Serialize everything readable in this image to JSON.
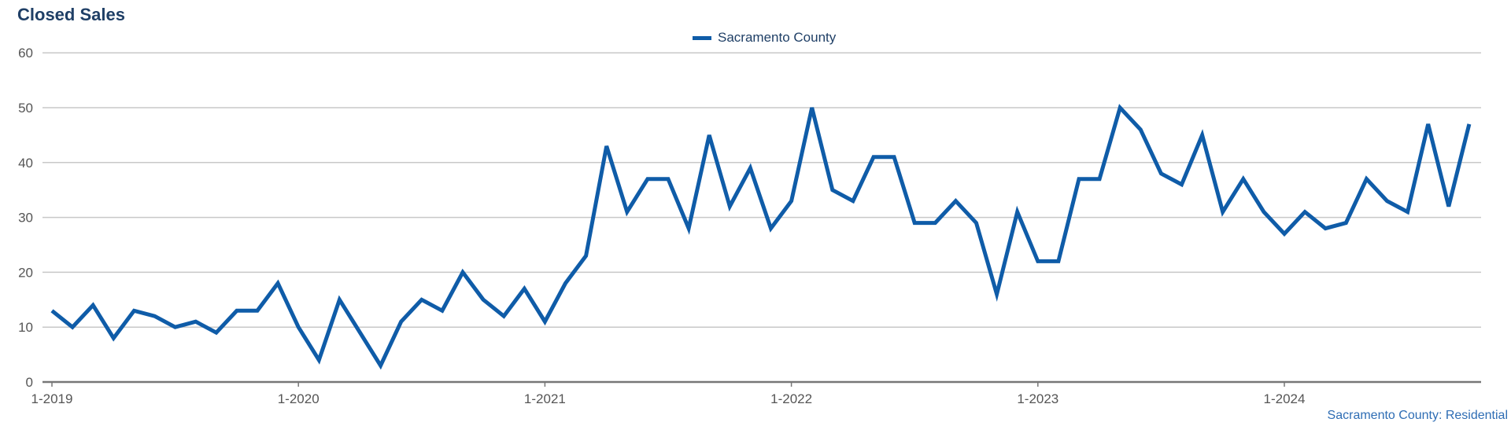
{
  "chart_data": {
    "type": "line",
    "title": "Closed Sales",
    "xlabel": "",
    "ylabel": "",
    "ylim": [
      0,
      60
    ],
    "yticks": [
      0,
      10,
      20,
      30,
      40,
      50,
      60
    ],
    "x_tick_labels": [
      "1-2019",
      "1-2020",
      "1-2021",
      "1-2022",
      "1-2023",
      "1-2024"
    ],
    "grid": true,
    "legend_position": "top-center",
    "series": [
      {
        "name": "Sacramento County",
        "color": "#0f5ca8",
        "x": [
          "1-2019",
          "2-2019",
          "3-2019",
          "4-2019",
          "5-2019",
          "6-2019",
          "7-2019",
          "8-2019",
          "9-2019",
          "10-2019",
          "11-2019",
          "12-2019",
          "1-2020",
          "2-2020",
          "3-2020",
          "4-2020",
          "5-2020",
          "6-2020",
          "7-2020",
          "8-2020",
          "9-2020",
          "10-2020",
          "11-2020",
          "12-2020",
          "1-2021",
          "2-2021",
          "3-2021",
          "4-2021",
          "5-2021",
          "6-2021",
          "7-2021",
          "8-2021",
          "9-2021",
          "10-2021",
          "11-2021",
          "12-2021",
          "1-2022",
          "2-2022",
          "3-2022",
          "4-2022",
          "5-2022",
          "6-2022",
          "7-2022",
          "8-2022",
          "9-2022",
          "10-2022",
          "11-2022",
          "12-2022",
          "1-2023",
          "2-2023",
          "3-2023",
          "4-2023",
          "5-2023",
          "6-2023",
          "7-2023",
          "8-2023",
          "9-2023",
          "10-2023",
          "11-2023",
          "12-2023",
          "1-2024",
          "2-2024",
          "3-2024",
          "4-2024",
          "5-2024",
          "6-2024",
          "7-2024",
          "8-2024",
          "9-2024",
          "10-2024"
        ],
        "values": [
          13,
          10,
          14,
          8,
          13,
          12,
          10,
          11,
          9,
          13,
          13,
          18,
          10,
          4,
          15,
          9,
          3,
          11,
          15,
          13,
          20,
          15,
          12,
          17,
          11,
          18,
          23,
          43,
          31,
          37,
          37,
          28,
          45,
          32,
          39,
          28,
          33,
          50,
          35,
          33,
          41,
          41,
          29,
          29,
          33,
          29,
          16,
          31,
          22,
          22,
          37,
          37,
          50,
          46,
          38,
          36,
          45,
          31,
          37,
          31,
          27,
          31,
          28,
          29,
          37,
          33,
          31,
          47,
          32,
          47
        ]
      }
    ]
  },
  "legend": {
    "label": "Sacramento County"
  },
  "footer": {
    "source": "Sacramento County: Residential"
  }
}
